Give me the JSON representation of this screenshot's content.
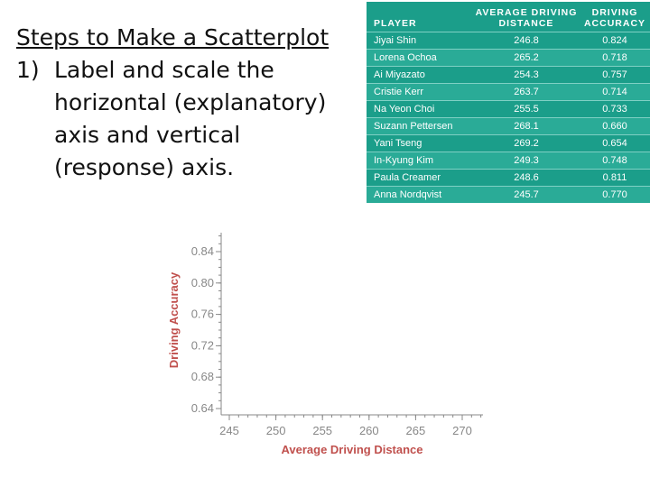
{
  "steps": {
    "heading": "Steps to Make a Scatterplot",
    "items": [
      {
        "number": "1)",
        "text": "Label and scale the horizontal (explanatory) axis and vertical (response) axis."
      }
    ]
  },
  "table": {
    "headers": [
      "PLAYER",
      "AVERAGE DRIVING DISTANCE",
      "DRIVING ACCURACY"
    ],
    "rows": [
      [
        "Jiyai Shin",
        "246.8",
        "0.824"
      ],
      [
        "Lorena Ochoa",
        "265.2",
        "0.718"
      ],
      [
        "Ai Miyazato",
        "254.3",
        "0.757"
      ],
      [
        "Cristie Kerr",
        "263.7",
        "0.714"
      ],
      [
        "Na Yeon Choi",
        "255.5",
        "0.733"
      ],
      [
        "Suzann Pettersen",
        "268.1",
        "0.660"
      ],
      [
        "Yani Tseng",
        "269.2",
        "0.654"
      ],
      [
        "In-Kyung Kim",
        "249.3",
        "0.748"
      ],
      [
        "Paula Creamer",
        "248.6",
        "0.811"
      ],
      [
        "Anna Nordqvist",
        "245.7",
        "0.770"
      ]
    ],
    "colors": {
      "header_bg": "#1b9e8a",
      "row_alt": "#2aab97",
      "text": "#ffffff"
    }
  },
  "chart_data": {
    "type": "scatter",
    "xlabel": "Average Driving Distance",
    "ylabel": "Driving Accuracy",
    "x_ticks": [
      "245",
      "250",
      "255",
      "260",
      "265",
      "270"
    ],
    "y_ticks": [
      "0.84",
      "0.80",
      "0.76",
      "0.72",
      "0.68",
      "0.64"
    ],
    "xlim": [
      244,
      272
    ],
    "ylim": [
      0.63,
      0.85
    ],
    "points": [],
    "label_color": "#c0504d",
    "grid": false
  }
}
